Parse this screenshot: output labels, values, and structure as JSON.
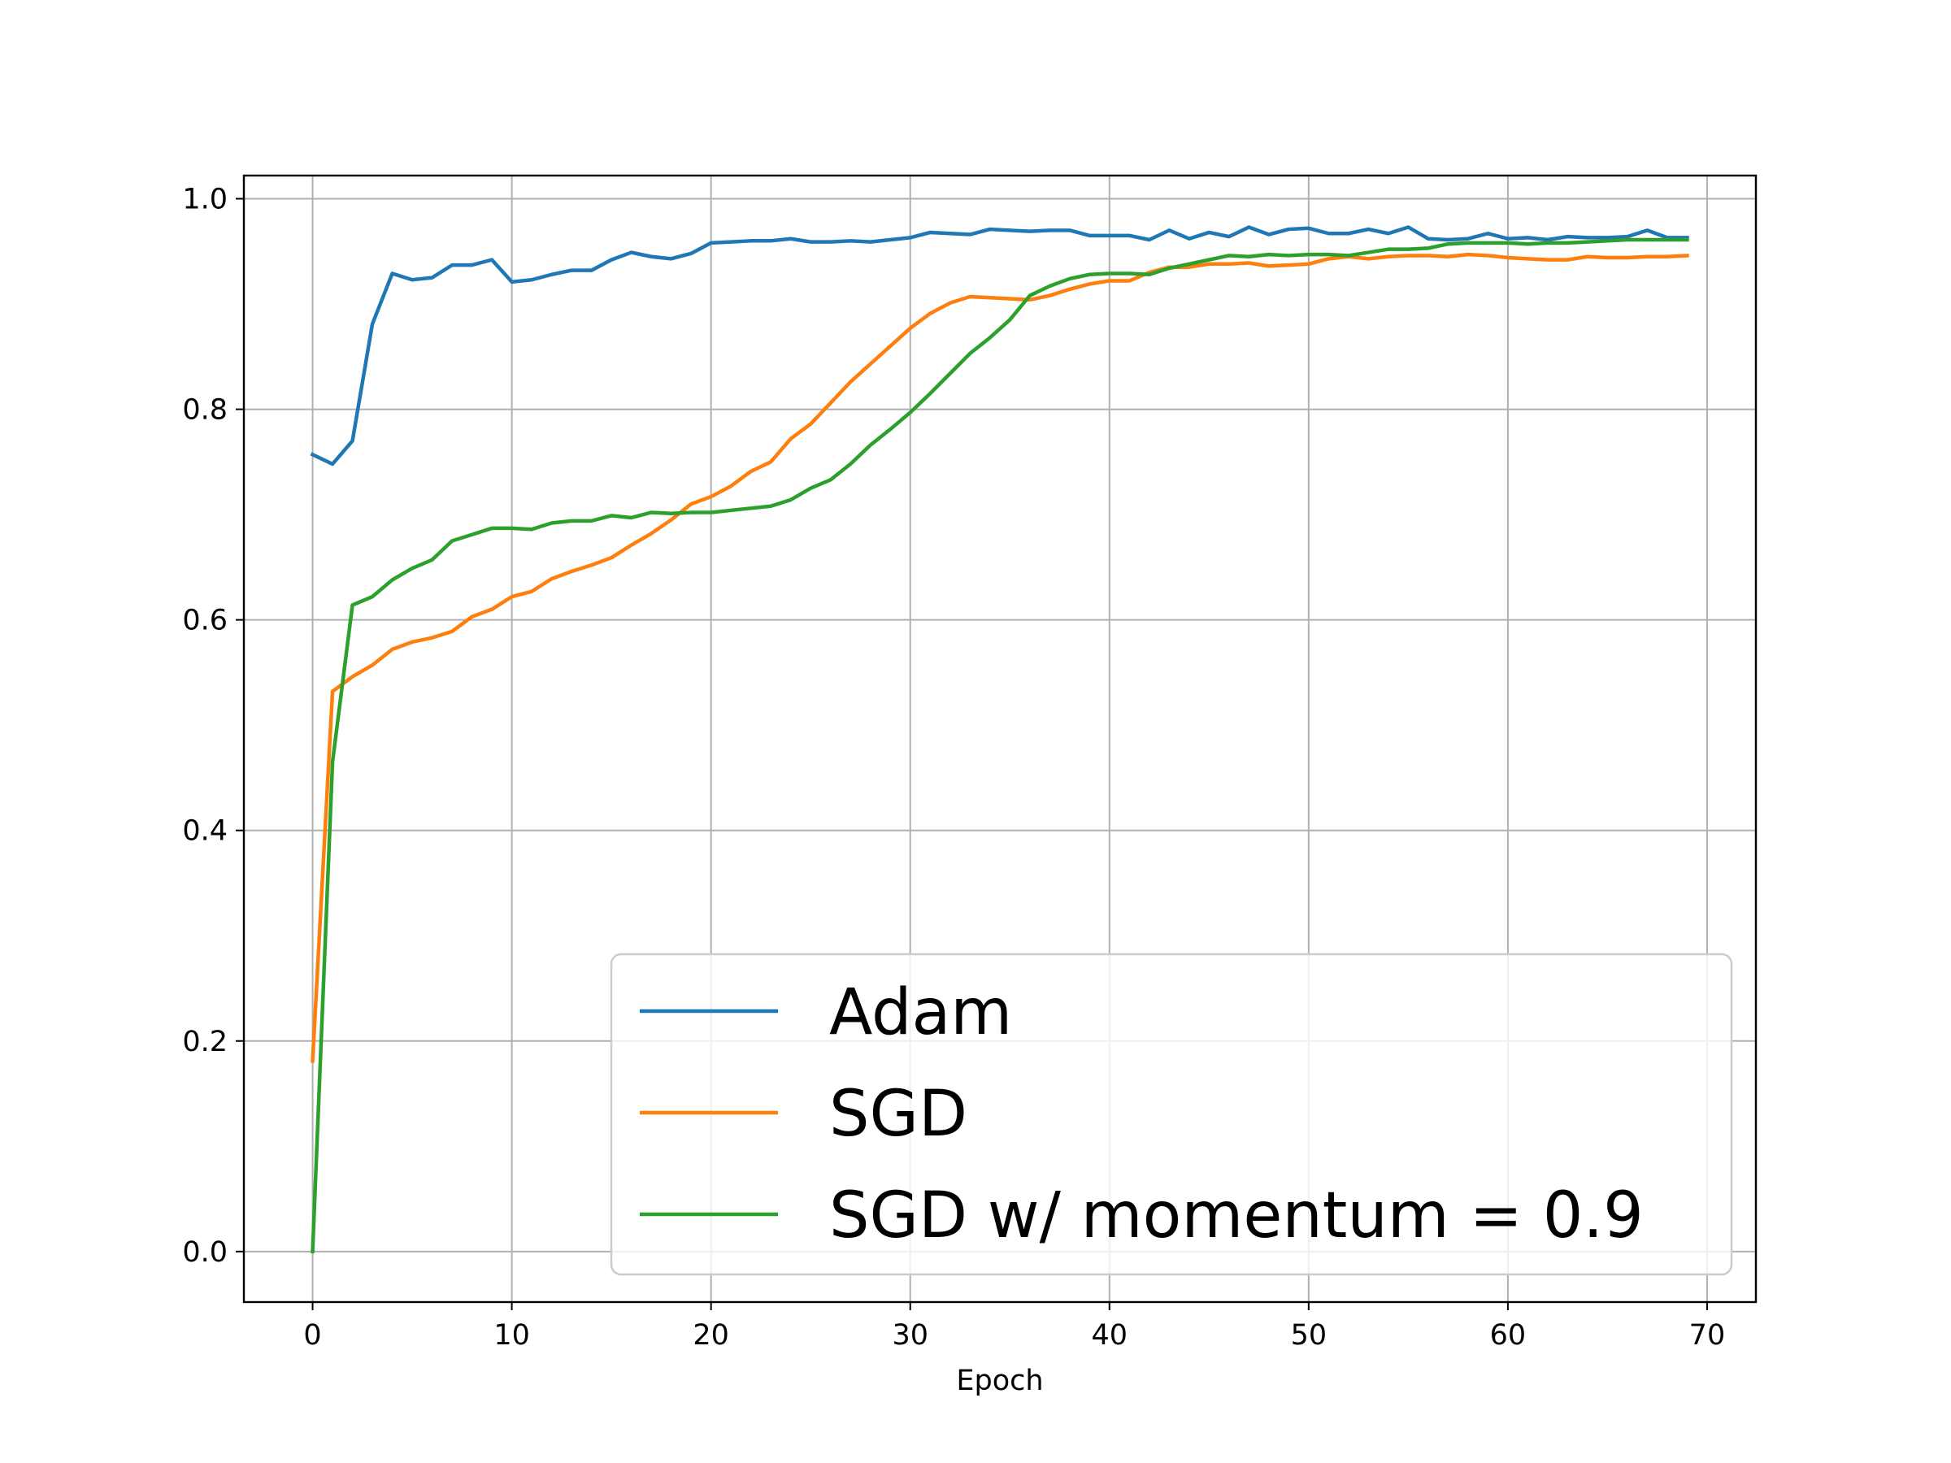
{
  "chart_data": {
    "type": "line",
    "title": "",
    "xlabel": "Epoch",
    "ylabel": "",
    "xlim": [
      -3.45,
      72.45
    ],
    "ylim": [
      -0.048,
      1.022
    ],
    "xticks": [
      0,
      10,
      20,
      30,
      40,
      50,
      60,
      70
    ],
    "xtick_labels": [
      "0",
      "10",
      "20",
      "30",
      "40",
      "50",
      "60",
      "70"
    ],
    "yticks": [
      0.0,
      0.2,
      0.4,
      0.6,
      0.8,
      1.0
    ],
    "ytick_labels": [
      "0.0",
      "0.2",
      "0.4",
      "0.6",
      "0.8",
      "1.0"
    ],
    "grid": true,
    "legend_position": "lower-right",
    "series": [
      {
        "name": "Adam",
        "color": "#1f77b4",
        "x": [
          0,
          1,
          2,
          3,
          4,
          5,
          6,
          7,
          8,
          9,
          10,
          11,
          12,
          13,
          14,
          15,
          16,
          17,
          18,
          19,
          20,
          21,
          22,
          23,
          24,
          25,
          26,
          27,
          28,
          29,
          30,
          31,
          32,
          33,
          34,
          35,
          36,
          37,
          38,
          39,
          40,
          41,
          42,
          43,
          44,
          45,
          46,
          47,
          48,
          49,
          50,
          51,
          52,
          53,
          54,
          55,
          56,
          57,
          58,
          59,
          60,
          61,
          62,
          63,
          64,
          65,
          66,
          67,
          68,
          69
        ],
        "values": [
          0.757,
          0.748,
          0.77,
          0.881,
          0.929,
          0.923,
          0.925,
          0.937,
          0.937,
          0.942,
          0.921,
          0.923,
          0.928,
          0.932,
          0.932,
          0.942,
          0.949,
          0.945,
          0.943,
          0.948,
          0.958,
          0.959,
          0.96,
          0.96,
          0.962,
          0.959,
          0.959,
          0.96,
          0.959,
          0.961,
          0.963,
          0.968,
          0.967,
          0.966,
          0.971,
          0.97,
          0.969,
          0.97,
          0.97,
          0.965,
          0.965,
          0.965,
          0.961,
          0.97,
          0.962,
          0.968,
          0.964,
          0.973,
          0.966,
          0.971,
          0.972,
          0.967,
          0.967,
          0.971,
          0.967,
          0.973,
          0.962,
          0.961,
          0.962,
          0.967,
          0.962,
          0.963,
          0.961,
          0.964,
          0.963,
          0.963,
          0.964,
          0.97,
          0.963,
          0.963
        ]
      },
      {
        "name": "SGD",
        "color": "#ff7f0e",
        "x": [
          0,
          1,
          2,
          3,
          4,
          5,
          6,
          7,
          8,
          9,
          10,
          11,
          12,
          13,
          14,
          15,
          16,
          17,
          18,
          19,
          20,
          21,
          22,
          23,
          24,
          25,
          26,
          27,
          28,
          29,
          30,
          31,
          32,
          33,
          34,
          35,
          36,
          37,
          38,
          39,
          40,
          41,
          42,
          43,
          44,
          45,
          46,
          47,
          48,
          49,
          50,
          51,
          52,
          53,
          54,
          55,
          56,
          57,
          58,
          59,
          60,
          61,
          62,
          63,
          64,
          65,
          66,
          67,
          68,
          69
        ],
        "values": [
          0.181,
          0.532,
          0.546,
          0.557,
          0.572,
          0.579,
          0.583,
          0.589,
          0.603,
          0.61,
          0.622,
          0.627,
          0.639,
          0.646,
          0.652,
          0.659,
          0.671,
          0.682,
          0.695,
          0.71,
          0.717,
          0.727,
          0.741,
          0.75,
          0.772,
          0.786,
          0.806,
          0.826,
          0.843,
          0.86,
          0.877,
          0.891,
          0.901,
          0.907,
          0.906,
          0.905,
          0.904,
          0.908,
          0.914,
          0.919,
          0.922,
          0.922,
          0.93,
          0.935,
          0.935,
          0.938,
          0.938,
          0.939,
          0.936,
          0.937,
          0.938,
          0.943,
          0.945,
          0.943,
          0.945,
          0.946,
          0.946,
          0.945,
          0.947,
          0.946,
          0.944,
          0.943,
          0.942,
          0.942,
          0.945,
          0.944,
          0.944,
          0.945,
          0.945,
          0.946
        ]
      },
      {
        "name": "SGD w/ momentum = 0.9",
        "color": "#2ca02c",
        "x": [
          0,
          1,
          2,
          3,
          4,
          5,
          6,
          7,
          8,
          9,
          10,
          11,
          12,
          13,
          14,
          15,
          16,
          17,
          18,
          19,
          20,
          21,
          22,
          23,
          24,
          25,
          26,
          27,
          28,
          29,
          30,
          31,
          32,
          33,
          34,
          35,
          36,
          37,
          38,
          39,
          40,
          41,
          42,
          43,
          44,
          45,
          46,
          47,
          48,
          49,
          50,
          51,
          52,
          53,
          54,
          55,
          56,
          57,
          58,
          59,
          60,
          61,
          62,
          63,
          64,
          65,
          66,
          67,
          68,
          69
        ],
        "values": [
          0.0,
          0.465,
          0.614,
          0.622,
          0.638,
          0.649,
          0.657,
          0.675,
          0.681,
          0.687,
          0.687,
          0.686,
          0.692,
          0.694,
          0.694,
          0.699,
          0.697,
          0.702,
          0.701,
          0.702,
          0.702,
          0.704,
          0.706,
          0.708,
          0.714,
          0.725,
          0.733,
          0.748,
          0.766,
          0.781,
          0.797,
          0.815,
          0.834,
          0.853,
          0.868,
          0.885,
          0.908,
          0.917,
          0.924,
          0.928,
          0.929,
          0.929,
          0.928,
          0.934,
          0.938,
          0.942,
          0.946,
          0.945,
          0.947,
          0.946,
          0.947,
          0.947,
          0.946,
          0.949,
          0.952,
          0.952,
          0.953,
          0.957,
          0.958,
          0.958,
          0.958,
          0.957,
          0.958,
          0.958,
          0.959,
          0.96,
          0.961,
          0.961,
          0.961,
          0.961
        ]
      }
    ]
  }
}
